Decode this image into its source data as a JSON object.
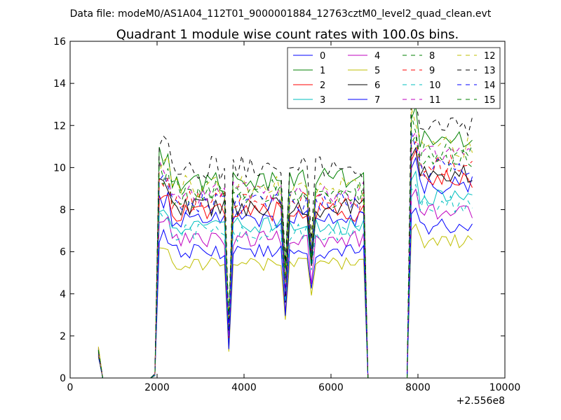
{
  "header": {
    "caption": "Data file: modeM0/AS1A04_112T01_9000001884_12763cztM0_level2_quad_clean.evt"
  },
  "chart_data": {
    "type": "line",
    "title": "Quadrant 1 module wise count rates with 100.0s bins.",
    "xlabel": "",
    "ylabel": "",
    "x_offset_label": "+2.556e8",
    "xlim": [
      0,
      10000
    ],
    "ylim": [
      0,
      16
    ],
    "xticks": [
      0,
      2000,
      4000,
      6000,
      8000,
      10000
    ],
    "yticks": [
      0,
      2,
      4,
      6,
      8,
      10,
      12,
      14,
      16
    ],
    "grid": false,
    "legend_position": "top-right",
    "segments": [
      {
        "start": 650,
        "end": 1950
      },
      {
        "start": 2050,
        "end": 3650
      },
      {
        "start": 3750,
        "end": 4850
      },
      {
        "start": 4950,
        "end": 5450
      },
      {
        "start": 5550,
        "end": 6750
      },
      {
        "start": 6850,
        "end": 7750
      },
      {
        "start": 7850,
        "end": 9250
      }
    ],
    "series": [
      {
        "name": "0",
        "color": "#0000ff",
        "dash": "solid",
        "base": 7.6
      },
      {
        "name": "1",
        "color": "#008000",
        "dash": "solid",
        "base": 9.4
      },
      {
        "name": "2",
        "color": "#ff0000",
        "dash": "solid",
        "base": 7.9
      },
      {
        "name": "3",
        "color": "#00bfbf",
        "dash": "solid",
        "base": 7.2
      },
      {
        "name": "4",
        "color": "#bf00bf",
        "dash": "solid",
        "base": 6.6
      },
      {
        "name": "5",
        "color": "#bfbf00",
        "dash": "solid",
        "base": 5.4
      },
      {
        "name": "6",
        "color": "#000000",
        "dash": "solid",
        "base": 8.1
      },
      {
        "name": "7",
        "color": "#0000ff",
        "dash": "solid",
        "base": 6.0
      },
      {
        "name": "8",
        "color": "#008000",
        "dash": "dashed",
        "base": 8.6
      },
      {
        "name": "9",
        "color": "#ff0000",
        "dash": "dashed",
        "base": 8.4
      },
      {
        "name": "10",
        "color": "#00bfbf",
        "dash": "dashed",
        "base": 6.9
      },
      {
        "name": "11",
        "color": "#bf00bf",
        "dash": "dashed",
        "base": 8.8
      },
      {
        "name": "12",
        "color": "#bfbf00",
        "dash": "dashed",
        "base": 9.1
      },
      {
        "name": "13",
        "color": "#000000",
        "dash": "dashed",
        "base": 10.0
      },
      {
        "name": "14",
        "color": "#0000ff",
        "dash": "dashed",
        "base": 8.3
      },
      {
        "name": "15",
        "color": "#008000",
        "dash": "dashed",
        "base": 8.9
      }
    ]
  }
}
